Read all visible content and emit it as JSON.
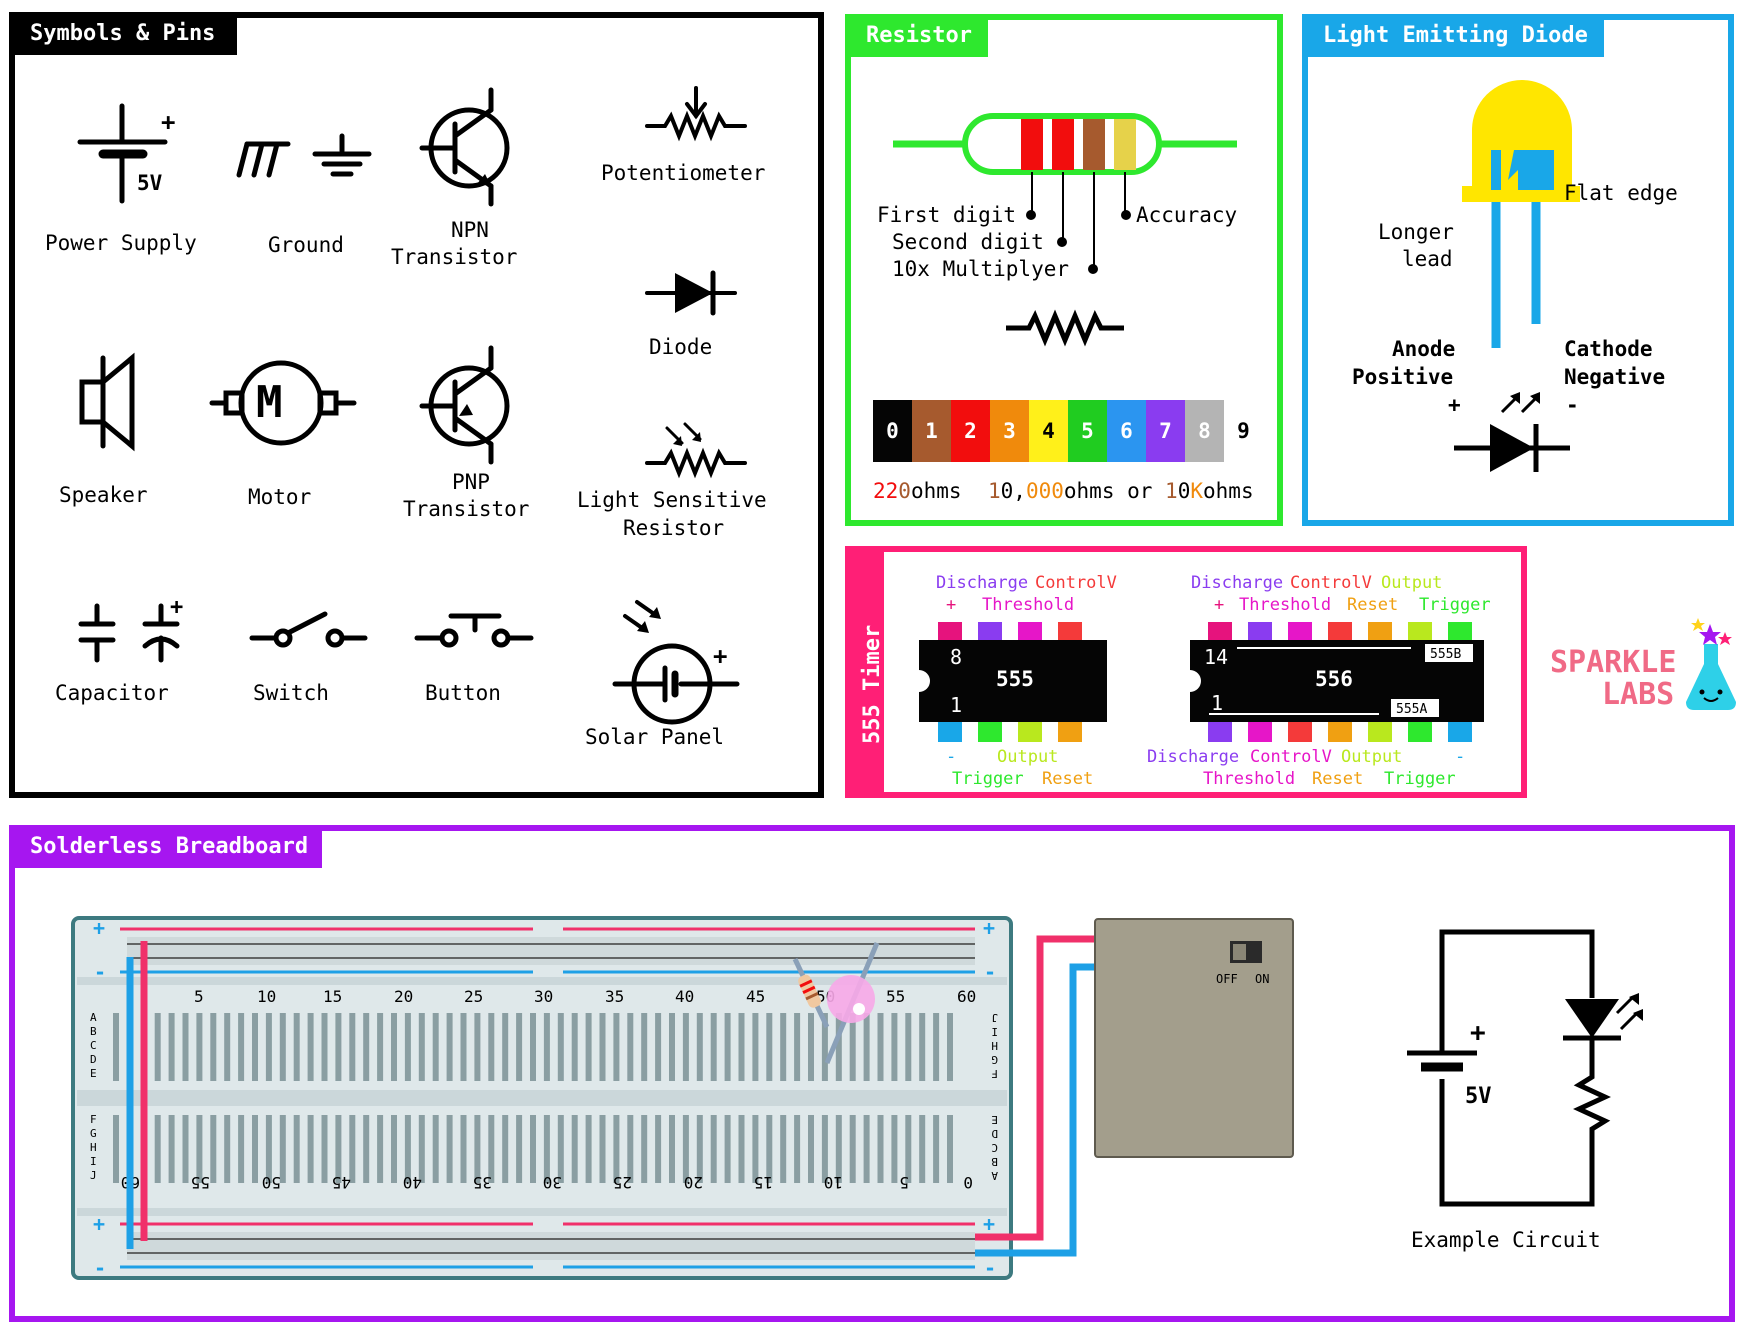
{
  "colors": {
    "black": "#000000",
    "green": "#2ee82e",
    "blue": "#19a7e8",
    "pink": "#ff1f76",
    "purple": "#a616f0",
    "board": "#dfe8ea",
    "board_edge": "#3d7a80",
    "rail_red": "#f0306a",
    "rail_blue": "#1ea0e6",
    "battery": "#a39e8c"
  },
  "symbols": {
    "title": "Symbols & Pins",
    "power_supply": "Power Supply",
    "power_supply_plus": "+",
    "power_supply_volt": "5V",
    "ground": "Ground",
    "npn_line1": "NPN",
    "npn_line2": "Transistor",
    "potentiometer": "Potentiometer",
    "diode": "Diode",
    "speaker": "Speaker",
    "motor": "Motor",
    "motor_letter": "M",
    "pnp_line1": "PNP",
    "pnp_line2": "Transistor",
    "lsr_line1": "Light Sensitive",
    "lsr_line2": "Resistor",
    "capacitor": "Capacitor",
    "capacitor_plus": "+",
    "switch": "Switch",
    "button": "Button",
    "solar_panel": "Solar Panel",
    "solar_plus": "+"
  },
  "resistor": {
    "title": "Resistor",
    "first_digit": "First digit",
    "second_digit": "Second digit",
    "multiplier": "10x Multiplyer",
    "accuracy": "Accuracy",
    "codes": [
      {
        "digit": "0",
        "color": "#050505",
        "text": "#ffffff"
      },
      {
        "digit": "1",
        "color": "#a65a2e",
        "text": "#ffffff"
      },
      {
        "digit": "2",
        "color": "#f20d0d",
        "text": "#ffffff"
      },
      {
        "digit": "3",
        "color": "#f08a0c",
        "text": "#ffffff"
      },
      {
        "digit": "4",
        "color": "#fff01a",
        "text": "#000000"
      },
      {
        "digit": "5",
        "color": "#20cc20",
        "text": "#ffffff"
      },
      {
        "digit": "6",
        "color": "#2b95f0",
        "text": "#ffffff"
      },
      {
        "digit": "7",
        "color": "#8a3cf0",
        "text": "#ffffff"
      },
      {
        "digit": "8",
        "color": "#b4b4b4",
        "text": "#ffffff"
      },
      {
        "digit": "9",
        "color": "#ffffff",
        "text": "#000000"
      }
    ],
    "ex_a1": "22",
    "ex_a2": "0",
    "ex_a3": "ohms",
    "ex_b1": "1",
    "ex_b2": "0,",
    "ex_b3": "000",
    "ex_b4": "ohms or ",
    "ex_b5": "1",
    "ex_b6": "0",
    "ex_b7": "K",
    "ex_b8": "ohms"
  },
  "led": {
    "title": "Light Emitting Diode",
    "flat_edge": "Flat edge",
    "longer": "Longer",
    "lead": "lead",
    "anode": "Anode",
    "positive": "Positive",
    "cathode": "Cathode",
    "negative": "Negative",
    "plus": "+",
    "minus": "-"
  },
  "timer": {
    "title": "555 Timer",
    "chip555": "555",
    "chip556": "556",
    "pin8": "8",
    "pin1": "1",
    "pin14": "14",
    "pin1b": "1",
    "tag_b": "555B",
    "tag_a": "555A",
    "l_discharge": "Discharge",
    "l_controlv": "ControlV",
    "l_plus": "+",
    "l_threshold": "Threshold",
    "l_minus": "-",
    "l_output": "Output",
    "l_trigger": "Trigger",
    "l_reset": "Reset",
    "r_discharge": "Discharge",
    "r_controlv": "ControlV",
    "r_output": "Output",
    "r_plus": "+",
    "r_threshold": "Threshold",
    "r_reset": "Reset",
    "r_trigger": "Trigger",
    "rb_discharge": "Discharge",
    "rb_controlv": "ControlV",
    "rb_output": "Output",
    "rb_minus": "-",
    "rb_threshold": "Threshold",
    "rb_reset": "Reset",
    "rb_trigger": "Trigger",
    "logo1": "SPARKLE",
    "logo2": "LABS"
  },
  "breadboard": {
    "title": "Solderless Breadboard",
    "top_numbers": [
      "5",
      "10",
      "15",
      "20",
      "25",
      "30",
      "35",
      "40",
      "45",
      "50",
      "55",
      "60"
    ],
    "bottom_numbers": [
      "60",
      "55",
      "50",
      "45",
      "40",
      "35",
      "30",
      "25",
      "20",
      "15",
      "10",
      "5",
      "0"
    ],
    "rows_top": [
      "A",
      "B",
      "C",
      "D",
      "E"
    ],
    "rows_bottom": [
      "F",
      "G",
      "H",
      "I",
      "J"
    ],
    "rows_right_top": [
      "J",
      "I",
      "H",
      "G",
      "F"
    ],
    "rows_right_bottom": [
      "E",
      "D",
      "C",
      "B",
      "A"
    ],
    "plus": "+",
    "minus": "-",
    "off": "OFF",
    "on": "ON",
    "circuit_volt": "5V",
    "circuit_plus": "+",
    "example": "Example Circuit"
  }
}
